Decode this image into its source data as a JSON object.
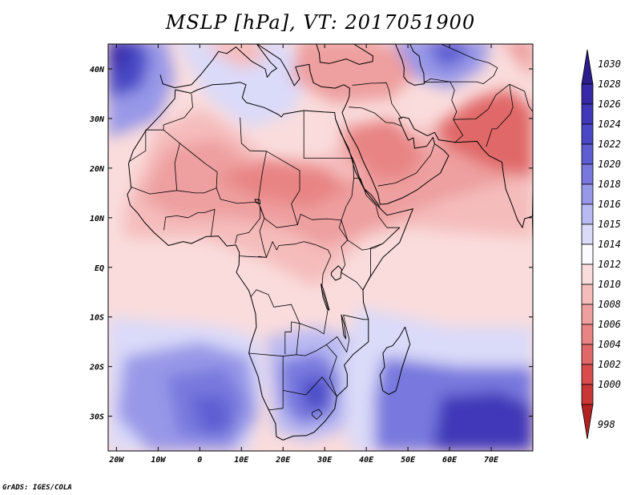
{
  "title": "MSLP [hPa], VT: 2017051900",
  "footer": "GrADS: IGES/COLA",
  "map": {
    "lon_range": [
      -22,
      80
    ],
    "lat_range": [
      -37,
      45
    ],
    "lon_ticks": [
      {
        "value": -20,
        "label": "20W"
      },
      {
        "value": -10,
        "label": "10W"
      },
      {
        "value": 0,
        "label": "0"
      },
      {
        "value": 10,
        "label": "10E"
      },
      {
        "value": 20,
        "label": "20E"
      },
      {
        "value": 30,
        "label": "30E"
      },
      {
        "value": 40,
        "label": "40E"
      },
      {
        "value": 50,
        "label": "50E"
      },
      {
        "value": 60,
        "label": "60E"
      },
      {
        "value": 70,
        "label": "70E"
      }
    ],
    "lat_ticks": [
      {
        "value": 40,
        "label": "40N"
      },
      {
        "value": 30,
        "label": "30N"
      },
      {
        "value": 20,
        "label": "20N"
      },
      {
        "value": 10,
        "label": "10N"
      },
      {
        "value": 0,
        "label": "EQ"
      },
      {
        "value": -10,
        "label": "10S"
      },
      {
        "value": -20,
        "label": "20S"
      },
      {
        "value": -30,
        "label": "30S"
      }
    ]
  },
  "colorbar": {
    "levels": [
      {
        "label": "1030",
        "color": "#2d1c8c"
      },
      {
        "label": "1028",
        "color": "#3729a8"
      },
      {
        "label": "1026",
        "color": "#4038b8"
      },
      {
        "label": "1024",
        "color": "#4a48c6"
      },
      {
        "label": "1022",
        "color": "#5e5ed2"
      },
      {
        "label": "1020",
        "color": "#7878de"
      },
      {
        "label": "1018",
        "color": "#9898e8"
      },
      {
        "label": "1016",
        "color": "#babaf2"
      },
      {
        "label": "1015",
        "color": "#dadaf9"
      },
      {
        "label": "1014",
        "color": "#fafaff"
      },
      {
        "label": "1012",
        "color": "#fadcdc"
      },
      {
        "label": "1010",
        "color": "#f5bcbc"
      },
      {
        "label": "1008",
        "color": "#ee9f9f"
      },
      {
        "label": "1006",
        "color": "#e88484"
      },
      {
        "label": "1004",
        "color": "#e06868"
      },
      {
        "label": "1002",
        "color": "#d84c4c"
      },
      {
        "label": "1000",
        "color": "#c93636"
      },
      {
        "label": "998",
        "color": "#b22222"
      }
    ]
  }
}
